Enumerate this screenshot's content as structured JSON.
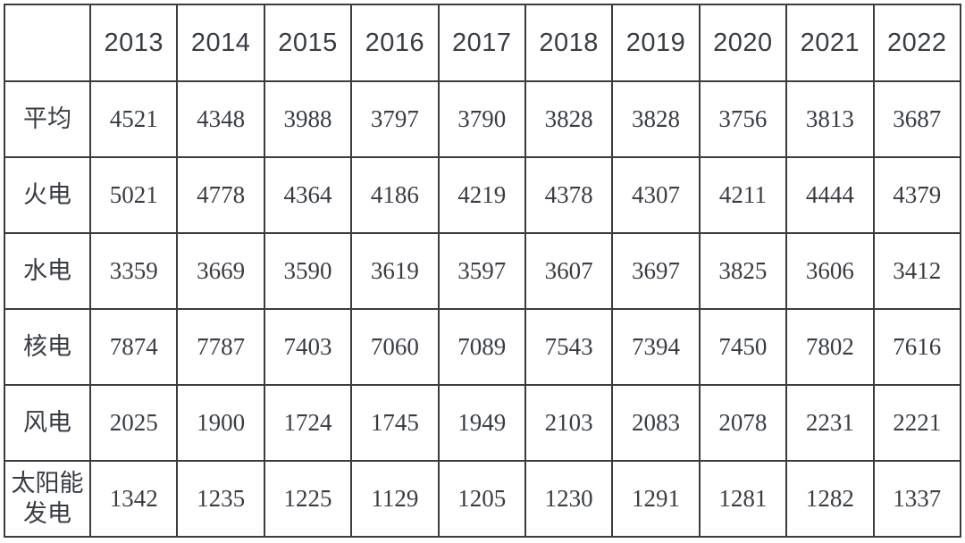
{
  "chart_data": {
    "type": "table",
    "categories": [
      "2013",
      "2014",
      "2015",
      "2016",
      "2017",
      "2018",
      "2019",
      "2020",
      "2021",
      "2022"
    ],
    "series": [
      {
        "name": "平均",
        "values": [
          4521,
          4348,
          3988,
          3797,
          3790,
          3828,
          3828,
          3756,
          3813,
          3687
        ]
      },
      {
        "name": "火电",
        "values": [
          5021,
          4778,
          4364,
          4186,
          4219,
          4378,
          4307,
          4211,
          4444,
          4379
        ]
      },
      {
        "name": "水电",
        "values": [
          3359,
          3669,
          3590,
          3619,
          3597,
          3607,
          3697,
          3825,
          3606,
          3412
        ]
      },
      {
        "name": "核电",
        "values": [
          7874,
          7787,
          7403,
          7060,
          7089,
          7543,
          7394,
          7450,
          7802,
          7616
        ]
      },
      {
        "name": "风电",
        "values": [
          2025,
          1900,
          1724,
          1745,
          1949,
          2103,
          2083,
          2078,
          2231,
          2221
        ]
      },
      {
        "name": "太阳能发电",
        "values": [
          1342,
          1235,
          1225,
          1129,
          1205,
          1230,
          1291,
          1281,
          1282,
          1337
        ]
      }
    ],
    "corner_label": "",
    "layout": {
      "grid": "on",
      "header_position": "top-row-years, left-column-series-names"
    },
    "colors": {
      "border": "#3c3c3c",
      "text": "#383d44",
      "background": "#ffffff"
    }
  }
}
